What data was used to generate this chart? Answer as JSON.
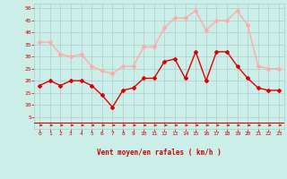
{
  "x": [
    0,
    1,
    2,
    3,
    4,
    5,
    6,
    7,
    8,
    9,
    10,
    11,
    12,
    13,
    14,
    15,
    16,
    17,
    18,
    19,
    20,
    21,
    22,
    23
  ],
  "avg_wind": [
    18,
    20,
    18,
    20,
    20,
    18,
    14,
    9,
    16,
    17,
    21,
    21,
    28,
    29,
    21,
    32,
    20,
    32,
    32,
    26,
    21,
    17,
    16,
    16
  ],
  "gust_wind": [
    36,
    36,
    31,
    30,
    31,
    26,
    24,
    23,
    26,
    26,
    34,
    34,
    42,
    46,
    46,
    49,
    41,
    45,
    45,
    49,
    43,
    26,
    25,
    25
  ],
  "avg_color": "#dd0000",
  "gust_color": "#ffaaaa",
  "bg_color": "#cceee8",
  "grid_color": "#aacccc",
  "xlabel": "Vent moyen/en rafales ( km/h )",
  "xlabel_color": "#cc0000",
  "tick_color": "#cc0000",
  "ylim": [
    0,
    52
  ],
  "yticks": [
    5,
    10,
    15,
    20,
    25,
    30,
    35,
    40,
    45,
    50
  ],
  "xticks": [
    0,
    1,
    2,
    3,
    4,
    5,
    6,
    7,
    8,
    9,
    10,
    11,
    12,
    13,
    14,
    15,
    16,
    17,
    18,
    19,
    20,
    21,
    22,
    23
  ],
  "arrow_color": "#dd0000",
  "marker_size": 2,
  "line_width": 1.0
}
